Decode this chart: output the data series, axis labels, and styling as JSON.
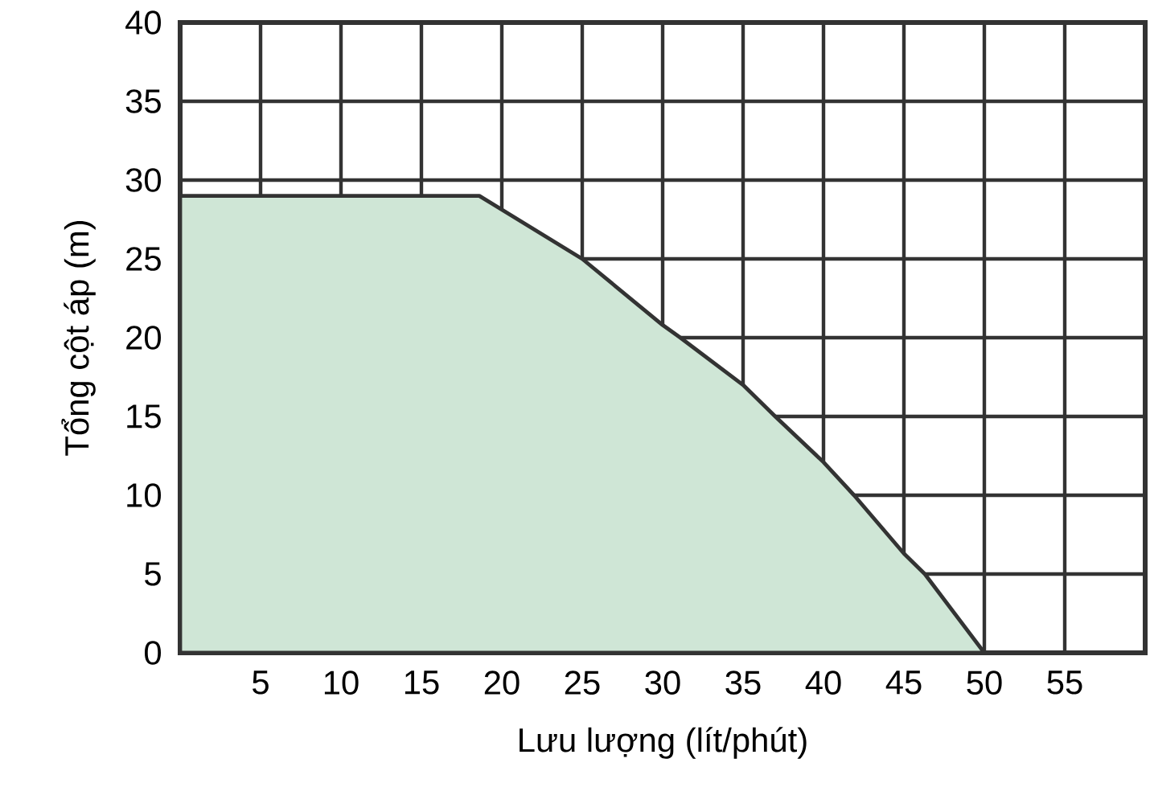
{
  "chart_data": {
    "type": "area",
    "xlabel": "Lưu lượng (lít/phút)",
    "ylabel": "Tổng cột áp (m)",
    "x": [
      0,
      18.6,
      25,
      30,
      31.1,
      35,
      37,
      40,
      41.9,
      45,
      46.3,
      50
    ],
    "values": [
      29,
      29,
      25,
      20.8,
      20,
      17,
      15,
      12.1,
      10,
      6.3,
      5,
      0
    ],
    "color": "#cfe6d6",
    "xlim": [
      0,
      60
    ],
    "ylim": [
      0,
      40
    ],
    "xticks": [
      5,
      10,
      15,
      20,
      25,
      30,
      35,
      40,
      45,
      50,
      55
    ],
    "yticks": [
      0,
      5,
      10,
      15,
      20,
      25,
      30,
      35,
      40
    ],
    "grid": true
  }
}
